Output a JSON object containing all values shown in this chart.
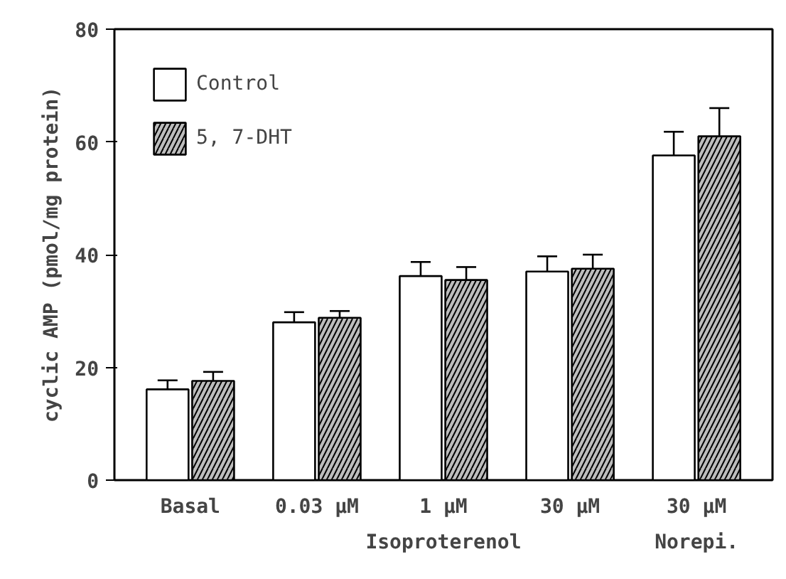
{
  "chart_data": {
    "type": "bar",
    "ylabel": "cyclic AMP (pmol/mg protein)",
    "categories": [
      "Basal",
      "0.03 µM",
      "1 µM",
      "30 µM",
      "30 µM"
    ],
    "series": [
      {
        "name": "Control",
        "color": "#ffffff",
        "values": [
          16.1,
          28,
          36.2,
          37,
          57.6
        ],
        "errors": [
          1.6,
          1.8,
          2.5,
          2.7,
          4.2
        ]
      },
      {
        "name": "5, 7-DHT",
        "color": "#bdbdbd",
        "values": [
          17.6,
          28.8,
          35.5,
          37.5,
          61
        ],
        "errors": [
          1.6,
          1.2,
          2.3,
          2.5,
          5
        ]
      }
    ],
    "annotations": [
      "Isoproterenol",
      "Norepi."
    ],
    "ylim": [
      0,
      80
    ],
    "yticks": [
      0,
      20,
      40,
      60,
      80
    ],
    "grid": false,
    "legend": "top left"
  }
}
